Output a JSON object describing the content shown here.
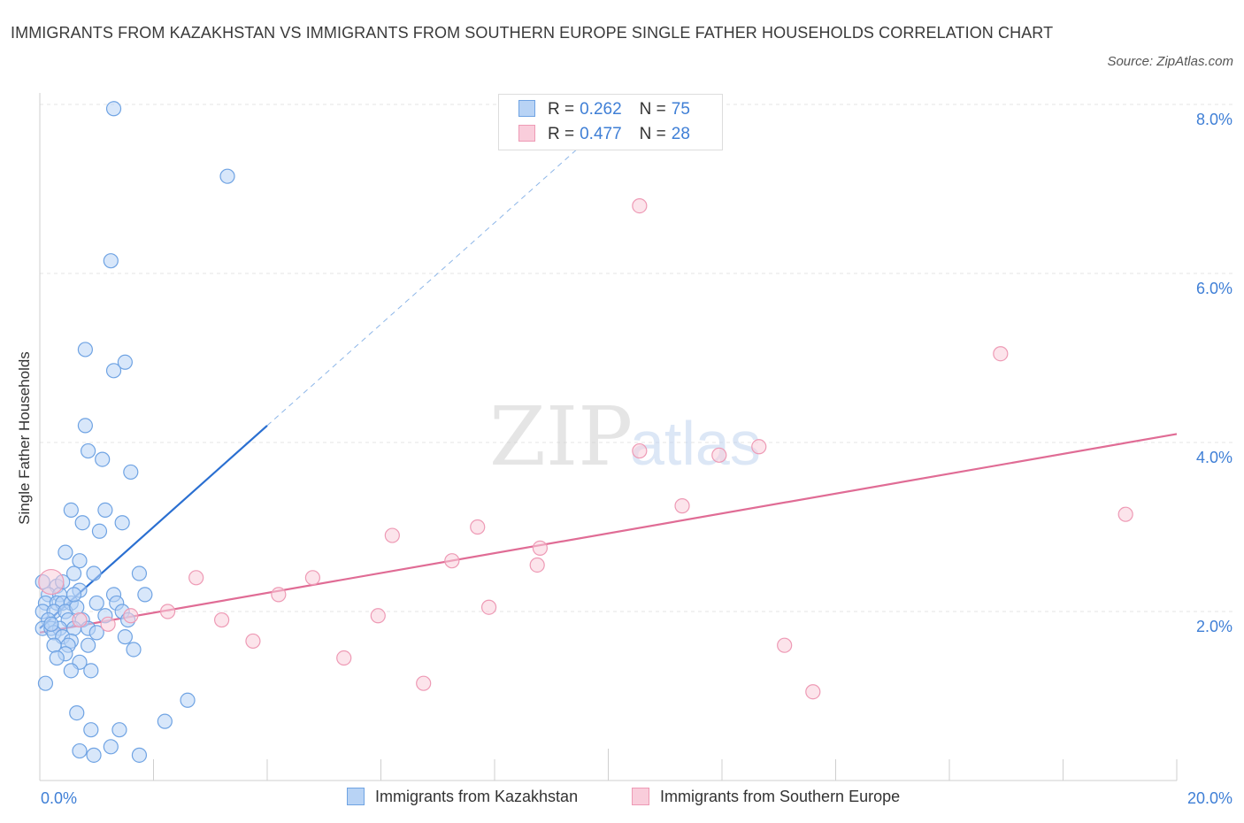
{
  "title": "IMMIGRANTS FROM KAZAKHSTAN VS IMMIGRANTS FROM SOUTHERN EUROPE SINGLE FATHER HOUSEHOLDS CORRELATION CHART",
  "source": "Source: ZipAtlas.com",
  "watermark": {
    "zip": "ZIP",
    "atlas": "atlas"
  },
  "legend": {
    "rows": [
      {
        "r_label": "R =",
        "r_value": "0.262",
        "n_label": "N =",
        "n_value": "75"
      },
      {
        "r_label": "R =",
        "r_value": "0.477",
        "n_label": "N =",
        "n_value": "28"
      }
    ]
  },
  "colors": {
    "kazakhstan_fill": "#b8d3f5",
    "kazakhstan_stroke": "#6fa3e3",
    "kazakhstan_line": "#2a6fd1",
    "southern_europe_fill": "#f9cddb",
    "southern_europe_stroke": "#ee9ab5",
    "southern_europe_line": "#e06c95",
    "axis_text": "#3f7fd6",
    "grid": "#e4e4e4"
  },
  "chart_data": {
    "type": "scatter",
    "title": "IMMIGRANTS FROM KAZAKHSTAN VS IMMIGRANTS FROM SOUTHERN EUROPE SINGLE FATHER HOUSEHOLDS CORRELATION CHART",
    "xlabel": "",
    "ylabel": "Single Father Households",
    "xlim": [
      0,
      20
    ],
    "ylim": [
      0,
      8
    ],
    "x_tick_labels": [
      "0.0%",
      "20.0%"
    ],
    "y_ticks": [
      2,
      4,
      6,
      8
    ],
    "y_tick_labels": [
      "2.0%",
      "4.0%",
      "6.0%",
      "8.0%"
    ],
    "grid": true,
    "legend_position": "bottom",
    "series": [
      {
        "name": "Immigrants from Kazakhstan",
        "R": 0.262,
        "N": 75,
        "trend": {
          "x_solid": [
            0,
            4.0
          ],
          "y_solid": [
            1.8,
            4.2
          ],
          "x_dashed": [
            4.0,
            10.0
          ],
          "y_dashed": [
            4.2,
            7.8
          ]
        },
        "points": [
          [
            1.3,
            7.95
          ],
          [
            3.3,
            7.15
          ],
          [
            1.25,
            6.15
          ],
          [
            0.8,
            5.1
          ],
          [
            1.5,
            4.95
          ],
          [
            1.3,
            4.85
          ],
          [
            0.8,
            4.2
          ],
          [
            0.85,
            3.9
          ],
          [
            1.1,
            3.8
          ],
          [
            1.6,
            3.65
          ],
          [
            0.55,
            3.2
          ],
          [
            1.15,
            3.2
          ],
          [
            0.75,
            3.05
          ],
          [
            1.45,
            3.05
          ],
          [
            1.05,
            2.95
          ],
          [
            0.45,
            2.7
          ],
          [
            0.7,
            2.6
          ],
          [
            0.6,
            2.45
          ],
          [
            0.95,
            2.45
          ],
          [
            1.75,
            2.45
          ],
          [
            0.05,
            2.35
          ],
          [
            0.3,
            2.3
          ],
          [
            0.7,
            2.25
          ],
          [
            0.15,
            2.2
          ],
          [
            0.35,
            2.2
          ],
          [
            1.3,
            2.2
          ],
          [
            1.85,
            2.2
          ],
          [
            0.1,
            2.1
          ],
          [
            0.3,
            2.1
          ],
          [
            0.4,
            2.1
          ],
          [
            0.55,
            2.1
          ],
          [
            1.0,
            2.1
          ],
          [
            1.35,
            2.1
          ],
          [
            0.05,
            2.0
          ],
          [
            0.25,
            2.0
          ],
          [
            0.45,
            2.0
          ],
          [
            1.45,
            2.0
          ],
          [
            0.15,
            1.9
          ],
          [
            0.5,
            1.9
          ],
          [
            0.75,
            1.9
          ],
          [
            1.55,
            1.9
          ],
          [
            0.05,
            1.8
          ],
          [
            0.2,
            1.8
          ],
          [
            0.35,
            1.8
          ],
          [
            0.6,
            1.8
          ],
          [
            0.85,
            1.8
          ],
          [
            0.25,
            1.75
          ],
          [
            1.0,
            1.75
          ],
          [
            0.4,
            1.7
          ],
          [
            0.55,
            1.65
          ],
          [
            1.5,
            1.7
          ],
          [
            0.25,
            1.6
          ],
          [
            0.5,
            1.6
          ],
          [
            0.45,
            1.5
          ],
          [
            0.7,
            1.4
          ],
          [
            0.55,
            1.3
          ],
          [
            0.9,
            1.3
          ],
          [
            0.1,
            1.15
          ],
          [
            2.6,
            0.95
          ],
          [
            0.65,
            0.8
          ],
          [
            2.2,
            0.7
          ],
          [
            0.9,
            0.6
          ],
          [
            1.4,
            0.6
          ],
          [
            1.25,
            0.4
          ],
          [
            0.7,
            0.35
          ],
          [
            0.95,
            0.3
          ],
          [
            1.75,
            0.3
          ],
          [
            0.2,
            1.85
          ],
          [
            0.65,
            2.05
          ],
          [
            0.85,
            1.6
          ],
          [
            1.15,
            1.95
          ],
          [
            0.3,
            1.45
          ],
          [
            1.65,
            1.55
          ],
          [
            0.4,
            2.35
          ],
          [
            0.6,
            2.2
          ]
        ]
      },
      {
        "name": "Immigrants from Southern Europe",
        "R": 0.477,
        "N": 28,
        "trend": {
          "x_solid": [
            0,
            20
          ],
          "y_solid": [
            1.75,
            4.1
          ]
        },
        "points": [
          [
            0.2,
            2.35
          ],
          [
            10.55,
            6.8
          ],
          [
            16.9,
            5.05
          ],
          [
            10.55,
            3.9
          ],
          [
            11.95,
            3.85
          ],
          [
            12.65,
            3.95
          ],
          [
            19.1,
            3.15
          ],
          [
            11.3,
            3.25
          ],
          [
            7.7,
            3.0
          ],
          [
            6.2,
            2.9
          ],
          [
            8.8,
            2.75
          ],
          [
            7.25,
            2.6
          ],
          [
            8.75,
            2.55
          ],
          [
            2.75,
            2.4
          ],
          [
            4.8,
            2.4
          ],
          [
            4.2,
            2.2
          ],
          [
            7.9,
            2.05
          ],
          [
            2.25,
            2.0
          ],
          [
            1.6,
            1.95
          ],
          [
            5.95,
            1.95
          ],
          [
            3.2,
            1.9
          ],
          [
            1.2,
            1.85
          ],
          [
            0.7,
            1.9
          ],
          [
            3.75,
            1.65
          ],
          [
            13.1,
            1.6
          ],
          [
            5.35,
            1.45
          ],
          [
            6.75,
            1.15
          ],
          [
            13.6,
            1.05
          ]
        ]
      }
    ]
  },
  "bottom_legend": [
    "Immigrants from Kazakhstan",
    "Immigrants from Southern Europe"
  ]
}
